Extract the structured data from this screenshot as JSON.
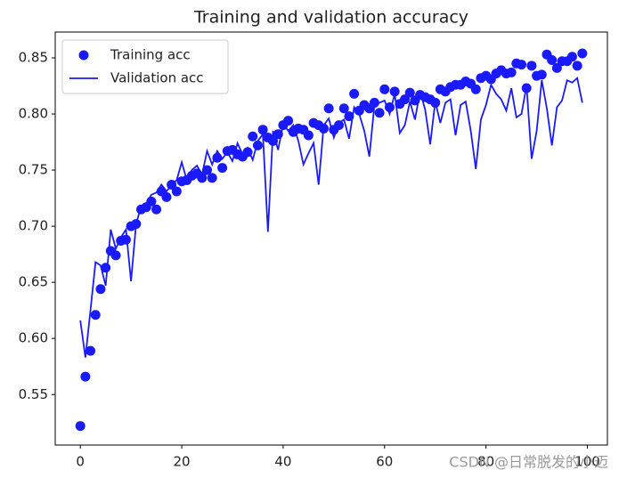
{
  "chart_data": {
    "type": "line",
    "title": "Training and validation accuracy",
    "x": [
      0,
      1,
      2,
      3,
      4,
      5,
      6,
      7,
      8,
      9,
      10,
      11,
      12,
      13,
      14,
      15,
      16,
      17,
      18,
      19,
      20,
      21,
      22,
      23,
      24,
      25,
      26,
      27,
      28,
      29,
      30,
      31,
      32,
      33,
      34,
      35,
      36,
      37,
      38,
      39,
      40,
      41,
      42,
      43,
      44,
      45,
      46,
      47,
      48,
      49,
      50,
      51,
      52,
      53,
      54,
      55,
      56,
      57,
      58,
      59,
      60,
      61,
      62,
      63,
      64,
      65,
      66,
      67,
      68,
      69,
      70,
      71,
      72,
      73,
      74,
      75,
      76,
      77,
      78,
      79,
      80,
      81,
      82,
      83,
      84,
      85,
      86,
      87,
      88,
      89,
      90,
      91,
      92,
      93,
      94,
      95,
      96,
      97,
      98,
      99
    ],
    "series": [
      {
        "name": "Training acc",
        "color": "#1a1aff",
        "mode": "markers",
        "values": [
          0.522,
          0.566,
          0.589,
          0.621,
          0.644,
          0.663,
          0.678,
          0.674,
          0.687,
          0.688,
          0.7,
          0.702,
          0.715,
          0.717,
          0.722,
          0.715,
          0.731,
          0.726,
          0.737,
          0.731,
          0.74,
          0.741,
          0.745,
          0.747,
          0.743,
          0.75,
          0.743,
          0.761,
          0.752,
          0.767,
          0.768,
          0.764,
          0.762,
          0.766,
          0.78,
          0.772,
          0.786,
          0.779,
          0.776,
          0.782,
          0.79,
          0.794,
          0.784,
          0.787,
          0.786,
          0.781,
          0.792,
          0.79,
          0.787,
          0.805,
          0.786,
          0.79,
          0.805,
          0.798,
          0.818,
          0.803,
          0.808,
          0.805,
          0.81,
          0.801,
          0.822,
          0.806,
          0.82,
          0.809,
          0.813,
          0.819,
          0.812,
          0.817,
          0.815,
          0.813,
          0.81,
          0.822,
          0.82,
          0.824,
          0.826,
          0.826,
          0.829,
          0.827,
          0.822,
          0.832,
          0.834,
          0.831,
          0.836,
          0.839,
          0.836,
          0.837,
          0.845,
          0.844,
          0.823,
          0.843,
          0.834,
          0.835,
          0.853,
          0.848,
          0.841,
          0.847,
          0.847,
          0.851,
          0.843,
          0.854
        ]
      },
      {
        "name": "Validation acc",
        "color": "#1a1aff",
        "mode": "lines",
        "values": [
          0.616,
          0.583,
          0.625,
          0.668,
          0.665,
          0.647,
          0.697,
          0.68,
          0.69,
          0.697,
          0.651,
          0.702,
          0.718,
          0.72,
          0.728,
          0.73,
          0.737,
          0.731,
          0.737,
          0.741,
          0.757,
          0.741,
          0.75,
          0.754,
          0.746,
          0.767,
          0.755,
          0.767,
          0.76,
          0.766,
          0.758,
          0.774,
          0.764,
          0.77,
          0.759,
          0.776,
          0.782,
          0.695,
          0.785,
          0.768,
          0.791,
          0.785,
          0.79,
          0.776,
          0.755,
          0.765,
          0.774,
          0.737,
          0.79,
          0.796,
          0.779,
          0.792,
          0.795,
          0.778,
          0.806,
          0.8,
          0.785,
          0.762,
          0.808,
          0.81,
          0.812,
          0.8,
          0.818,
          0.783,
          0.79,
          0.811,
          0.795,
          0.82,
          0.804,
          0.773,
          0.811,
          0.792,
          0.81,
          0.813,
          0.781,
          0.808,
          0.811,
          0.785,
          0.751,
          0.795,
          0.808,
          0.826,
          0.818,
          0.813,
          0.803,
          0.823,
          0.797,
          0.8,
          0.825,
          0.76,
          0.785,
          0.83,
          0.805,
          0.772,
          0.806,
          0.812,
          0.83,
          0.828,
          0.832,
          0.81
        ]
      }
    ],
    "xlim": [
      -4.95,
      103.95
    ],
    "ylim": [
      0.505,
      0.873
    ],
    "xticks": [
      0,
      20,
      40,
      60,
      80,
      100
    ],
    "yticks": [
      {
        "value": 0.55,
        "label": "0.55"
      },
      {
        "value": 0.6,
        "label": "0.60"
      },
      {
        "value": 0.65,
        "label": "0.65"
      },
      {
        "value": 0.7,
        "label": "0.70"
      },
      {
        "value": 0.75,
        "label": "0.75"
      },
      {
        "value": 0.8,
        "label": "0.80"
      },
      {
        "value": 0.85,
        "label": "0.85"
      }
    ],
    "legend": "upper left",
    "watermark": "CSDN @日常脱发的小迈"
  }
}
